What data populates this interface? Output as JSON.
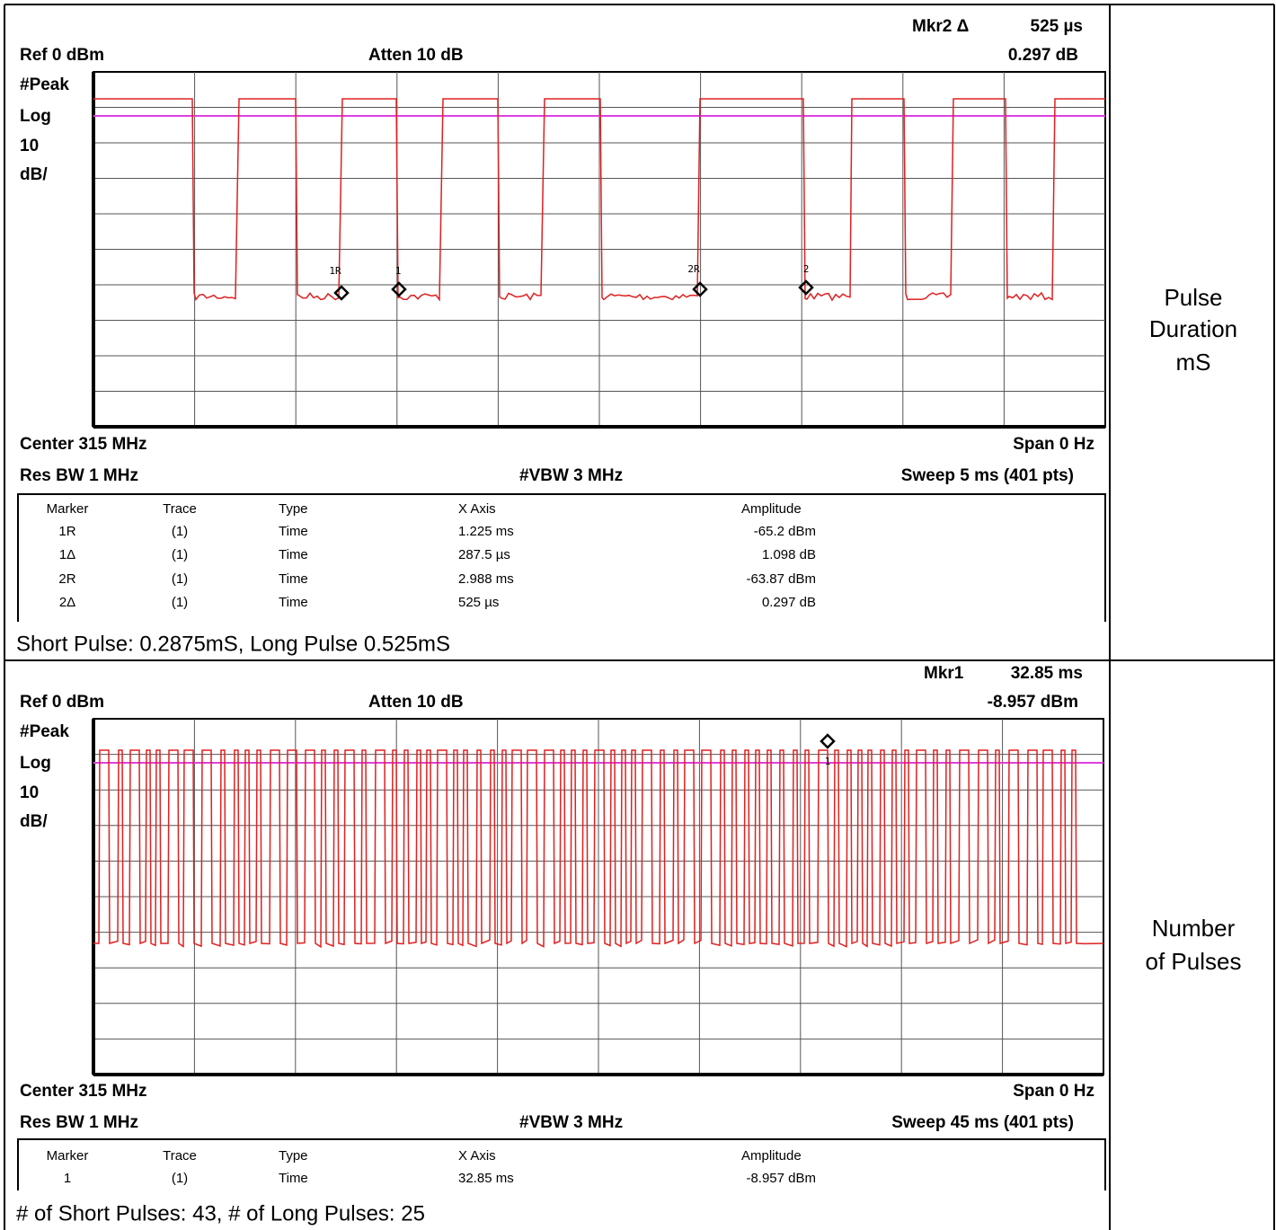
{
  "panels": [
    {
      "marker_readout": "Mkr2 Δ",
      "marker_readout_value": "525 µs",
      "marker_amplitude": "0.297 dB",
      "ref": "Ref 0 dBm",
      "atten": "Atten 10 dB",
      "scale": [
        "#Peak",
        "Log",
        "10",
        "dB/"
      ],
      "center": "Center 315 MHz",
      "span": "Span 0 Hz",
      "res_bw": "Res BW 1 MHz",
      "vbw": "#VBW 3 MHz",
      "sweep": "Sweep 5 ms (401 pts)",
      "trace_markers": [
        "1R",
        "1",
        "2R",
        "2"
      ],
      "marker_table": {
        "columns": [
          "Marker",
          "Trace",
          "Type",
          "X Axis",
          "Amplitude"
        ],
        "rows": [
          [
            "1R",
            "(1)",
            "Time",
            "1.225 ms",
            "-65.2 dBm"
          ],
          [
            "1Δ",
            "(1)",
            "Time",
            "287.5 µs",
            "1.098 dB"
          ],
          [
            "2R",
            "(1)",
            "Time",
            "2.988 ms",
            "-63.87 dBm"
          ],
          [
            "2Δ",
            "(1)",
            "Time",
            "525 µs",
            "0.297 dB"
          ]
        ]
      },
      "caption": "Short Pulse: 0.2875mS, Long Pulse 0.525mS",
      "side_label": [
        "Pulse",
        "Duration",
        "mS"
      ]
    },
    {
      "marker_readout": "Mkr1",
      "marker_readout_value": "32.85 ms",
      "marker_amplitude": "-8.957 dBm",
      "ref": "Ref 0 dBm",
      "atten": "Atten 10 dB",
      "scale": [
        "#Peak",
        "Log",
        "10",
        "dB/"
      ],
      "center": "Center 315 MHz",
      "span": "Span 0 Hz",
      "res_bw": "Res BW 1 MHz",
      "vbw": "#VBW 3 MHz",
      "sweep": "Sweep 45 ms (401 pts)",
      "trace_markers": [
        "1"
      ],
      "marker_table": {
        "columns": [
          "Marker",
          "Trace",
          "Type",
          "X Axis",
          "Amplitude"
        ],
        "rows": [
          [
            "1",
            "(1)",
            "Time",
            "32.85 ms",
            "-8.957 dBm"
          ]
        ]
      },
      "caption": "# of Short Pulses: 43, # of Long Pulses: 25",
      "side_label": [
        "Number",
        "of Pulses"
      ]
    }
  ]
}
